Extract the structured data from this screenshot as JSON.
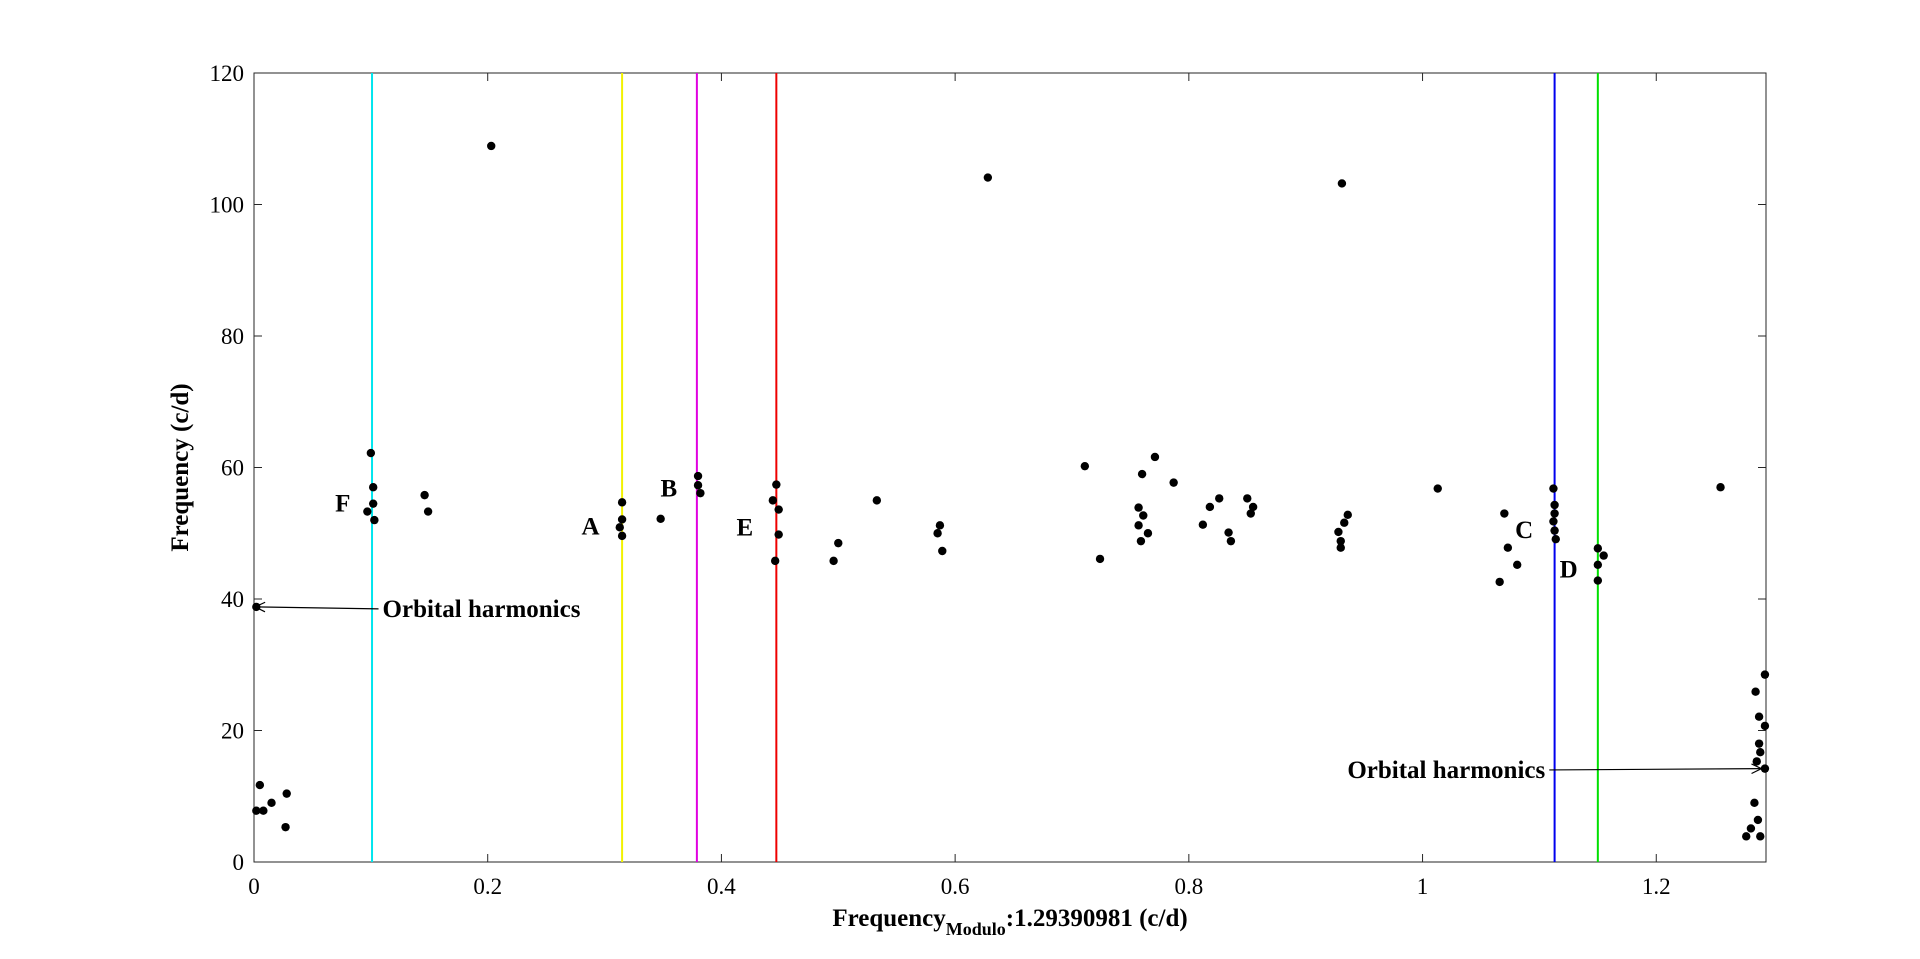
{
  "chart_data": {
    "type": "scatter",
    "title": "",
    "xlabel_main": "Frequency",
    "xlabel_sub": "Modulo",
    "xlabel_tail": ":1.29390981 (c/d)",
    "ylabel": "Frequency (c/d)",
    "xlim": [
      0,
      1.29390981
    ],
    "ylim": [
      0,
      120
    ],
    "xticks": [
      0,
      0.2,
      0.4,
      0.6,
      0.8,
      1,
      1.2
    ],
    "xtick_labels": [
      "0",
      "0.2",
      "0.4",
      "0.6",
      "0.8",
      "1",
      "1.2"
    ],
    "yticks": [
      0,
      20,
      40,
      60,
      80,
      100,
      120
    ],
    "ytick_labels": [
      "0",
      "20",
      "40",
      "60",
      "80",
      "100",
      "120"
    ],
    "grid": false,
    "legend": "none",
    "marker_color": "#000000",
    "series": [
      {
        "points": [
          [
            0.002,
            7.8
          ],
          [
            0.005,
            11.7
          ],
          [
            0.008,
            7.8
          ],
          [
            0.015,
            9.0
          ],
          [
            0.028,
            10.4
          ],
          [
            0.027,
            5.3
          ],
          [
            0.002,
            38.8
          ],
          [
            0.1,
            62.2
          ],
          [
            0.102,
            57.0
          ],
          [
            0.097,
            53.3
          ],
          [
            0.102,
            54.5
          ],
          [
            0.103,
            52.0
          ],
          [
            0.146,
            55.8
          ],
          [
            0.149,
            53.3
          ],
          [
            0.203,
            108.9
          ],
          [
            0.315,
            54.7
          ],
          [
            0.315,
            52.1
          ],
          [
            0.313,
            50.9
          ],
          [
            0.315,
            49.6
          ],
          [
            0.348,
            52.2
          ],
          [
            0.38,
            58.7
          ],
          [
            0.38,
            57.3
          ],
          [
            0.382,
            56.1
          ],
          [
            0.447,
            57.4
          ],
          [
            0.444,
            55.0
          ],
          [
            0.449,
            53.6
          ],
          [
            0.449,
            49.8
          ],
          [
            0.446,
            45.8
          ],
          [
            0.496,
            45.8
          ],
          [
            0.5,
            48.5
          ],
          [
            0.533,
            55.0
          ],
          [
            0.585,
            50.0
          ],
          [
            0.587,
            51.2
          ],
          [
            0.589,
            47.3
          ],
          [
            0.628,
            104.1
          ],
          [
            0.711,
            60.2
          ],
          [
            0.724,
            46.1
          ],
          [
            0.757,
            53.9
          ],
          [
            0.76,
            59.0
          ],
          [
            0.761,
            52.7
          ],
          [
            0.757,
            51.2
          ],
          [
            0.759,
            48.8
          ],
          [
            0.765,
            50.0
          ],
          [
            0.771,
            61.6
          ],
          [
            0.787,
            57.7
          ],
          [
            0.812,
            51.3
          ],
          [
            0.818,
            54.0
          ],
          [
            0.826,
            55.3
          ],
          [
            0.834,
            50.1
          ],
          [
            0.836,
            48.8
          ],
          [
            0.85,
            55.3
          ],
          [
            0.853,
            53.0
          ],
          [
            0.855,
            54.0
          ],
          [
            0.928,
            50.2
          ],
          [
            0.93,
            48.8
          ],
          [
            0.93,
            47.8
          ],
          [
            0.933,
            51.6
          ],
          [
            0.936,
            52.8
          ],
          [
            0.931,
            103.2
          ],
          [
            1.013,
            56.8
          ],
          [
            1.066,
            42.6
          ],
          [
            1.07,
            53.0
          ],
          [
            1.073,
            47.8
          ],
          [
            1.081,
            45.2
          ],
          [
            1.112,
            56.8
          ],
          [
            1.113,
            54.3
          ],
          [
            1.113,
            53.0
          ],
          [
            1.112,
            51.8
          ],
          [
            1.113,
            50.4
          ],
          [
            1.114,
            49.1
          ],
          [
            1.15,
            47.7
          ],
          [
            1.15,
            45.2
          ],
          [
            1.15,
            42.8
          ],
          [
            1.155,
            46.6
          ],
          [
            1.255,
            57.0
          ],
          [
            1.277,
            3.9
          ],
          [
            1.281,
            5.1
          ],
          [
            1.284,
            9.0
          ],
          [
            1.285,
            25.9
          ],
          [
            1.286,
            15.3
          ],
          [
            1.287,
            6.4
          ],
          [
            1.288,
            18.0
          ],
          [
            1.288,
            22.1
          ],
          [
            1.289,
            16.7
          ],
          [
            1.289,
            3.9
          ],
          [
            1.293,
            28.5
          ],
          [
            1.293,
            20.7
          ],
          [
            1.293,
            14.2
          ]
        ]
      }
    ],
    "vertical_lines": [
      {
        "x": 0.101,
        "color": "#00e5ee"
      },
      {
        "x": 0.315,
        "color": "#f2f200"
      },
      {
        "x": 0.379,
        "color": "#e000e0"
      },
      {
        "x": 0.447,
        "color": "#ee0000"
      },
      {
        "x": 1.113,
        "color": "#0000ee"
      },
      {
        "x": 1.15,
        "color": "#00e000"
      }
    ],
    "line_labels": [
      {
        "text": "F",
        "x": 0.076,
        "y": 54.5
      },
      {
        "text": "A",
        "x": 0.288,
        "y": 51.0
      },
      {
        "text": "B",
        "x": 0.355,
        "y": 56.8
      },
      {
        "text": "E",
        "x": 0.42,
        "y": 50.9
      },
      {
        "text": "C",
        "x": 1.087,
        "y": 50.5
      },
      {
        "text": "D",
        "x": 1.125,
        "y": 44.5
      }
    ],
    "annotations": [
      {
        "text": "Orbital harmonics",
        "text_x": 0.11,
        "text_y": 38.5,
        "arrow_x": 0.001,
        "arrow_y": 38.8,
        "anchor": "start"
      },
      {
        "text": "Orbital harmonics",
        "text_x": 1.105,
        "text_y": 14.0,
        "arrow_x": 1.29,
        "arrow_y": 14.2,
        "anchor": "end"
      }
    ]
  }
}
